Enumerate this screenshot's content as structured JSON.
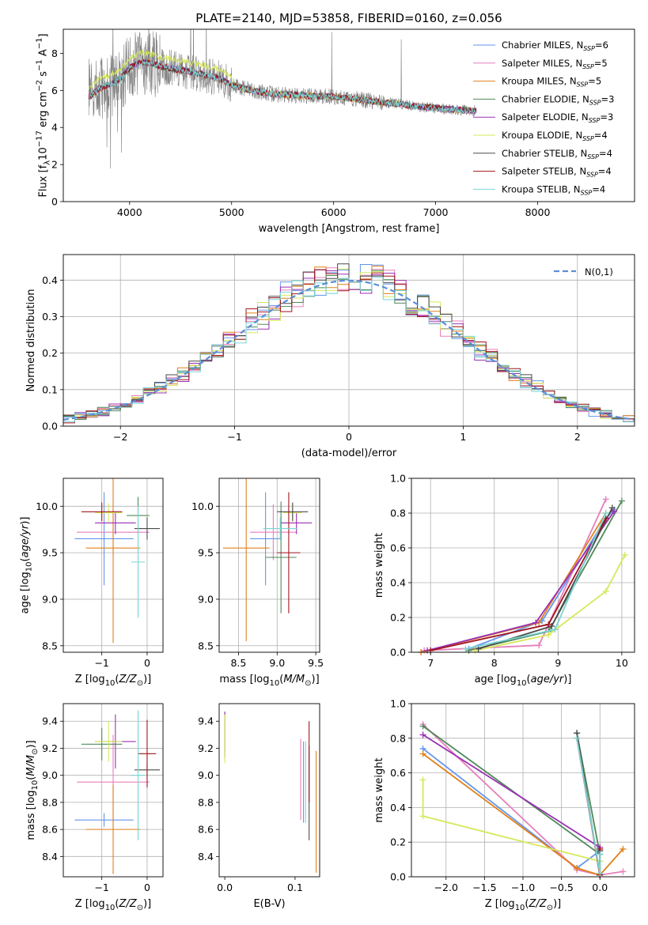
{
  "figure": {
    "title": "PLATE=2140, MJD=53858, FIBERID=0160, z=0.056"
  },
  "series_styles": [
    {
      "name": "Chabrier MILES, N_SSP=6",
      "color": "#6495ed"
    },
    {
      "name": "Salpeter MILES, N_SSP=5",
      "color": "#e67fbc"
    },
    {
      "name": "Kroupa MILES, N_SSP=5",
      "color": "#e0801b"
    },
    {
      "name": "Chabrier ELODIE, N_SSP=3",
      "color": "#4e8a5a"
    },
    {
      "name": "Salpeter ELODIE, N_SSP=3",
      "color": "#9b30b3"
    },
    {
      "name": "Kroupa ELODIE, N_SSP=4",
      "color": "#d6e85a"
    },
    {
      "name": "Chabrier STELIB, N_SSP=4",
      "color": "#4a4a4a"
    },
    {
      "name": "Salpeter STELIB, N_SSP=4",
      "color": "#a0141e"
    },
    {
      "name": "Kroupa STELIB, N_SSP=4",
      "color": "#7ad4d4"
    }
  ],
  "chart_data": [
    {
      "id": "spectrum",
      "type": "line",
      "title": "PLATE=2140, MJD=53858, FIBERID=0160, z=0.056",
      "xlabel": "wavelength [Angstrom, rest frame]",
      "ylabel": "Flux [f_λ 10^-17 erg cm^-2 s^-1 A^-1]",
      "xlim": [
        3350,
        8950
      ],
      "ylim": [
        0,
        9.3
      ],
      "xticks": [
        4000,
        5000,
        6000,
        7000,
        8000
      ],
      "yticks": [
        0,
        2,
        4,
        6,
        8
      ],
      "data_color": "#808080",
      "continuum": {
        "x": [
          3600,
          3700,
          3800,
          3900,
          4000,
          4100,
          4200,
          4300,
          4500,
          4700,
          4900,
          5000,
          5200,
          5400,
          5600,
          5800,
          6000,
          6200,
          6400,
          6600,
          6800,
          7000,
          7200,
          7400
        ],
        "y": [
          5.6,
          6.1,
          6.3,
          6.6,
          7.2,
          7.5,
          7.5,
          7.3,
          7.1,
          6.9,
          6.6,
          6.3,
          6.0,
          5.8,
          5.75,
          5.7,
          5.65,
          5.55,
          5.4,
          5.3,
          5.15,
          5.05,
          4.95,
          4.9
        ]
      },
      "legend": [
        "Chabrier MILES, N_SSP=6",
        "Salpeter MILES, N_SSP=5",
        "Kroupa MILES, N_SSP=5",
        "Chabrier ELODIE, N_SSP=3",
        "Salpeter ELODIE, N_SSP=3",
        "Kroupa ELODIE, N_SSP=4",
        "Chabrier STELIB, N_SSP=4",
        "Salpeter STELIB, N_SSP=4",
        "Kroupa STELIB, N_SSP=4"
      ],
      "legend_placement": "upper right",
      "grid": false
    },
    {
      "id": "residuals",
      "type": "histogram",
      "xlabel": "(data-model)/error",
      "ylabel": "Normed distribution",
      "xlim": [
        -2.5,
        2.5
      ],
      "ylim": [
        0,
        0.47
      ],
      "xticks": [
        -2,
        -1,
        0,
        1,
        2
      ],
      "yticks": [
        0.0,
        0.1,
        0.2,
        0.3,
        0.4
      ],
      "bin_width": 0.1,
      "reference_curve": {
        "name": "N(0,1)",
        "mean": 0,
        "sigma": 1,
        "style": "dashed"
      },
      "legend": [
        "N(0,1)"
      ],
      "legend_placement": "upper right",
      "grid": true
    },
    {
      "id": "age_vs_Z",
      "type": "errorbar",
      "xlabel": "Z [log10(Z/Z⊙)]",
      "ylabel": "age  [log10(age/yr)]",
      "xlim": [
        -1.85,
        0.35
      ],
      "ylim": [
        8.43,
        10.3
      ],
      "xticks": [
        -1,
        0
      ],
      "yticks": [
        8.5,
        9.0,
        9.5,
        10.0
      ],
      "points": [
        {
          "series": 0,
          "x": -0.95,
          "xerr": 0.65,
          "y": 9.65,
          "yerr": 0.5
        },
        {
          "series": 1,
          "x": -0.75,
          "xerr": 0.8,
          "y": 9.72,
          "yerr": 0.25
        },
        {
          "series": 2,
          "x": -0.75,
          "xerr": 0.6,
          "y": 9.55,
          "yerr": 1.02
        },
        {
          "series": 3,
          "x": -0.2,
          "xerr": 0.25,
          "y": 9.9,
          "yerr": 0.2
        },
        {
          "series": 4,
          "x": -0.7,
          "xerr": 0.45,
          "y": 9.82,
          "yerr": 0.12
        },
        {
          "series": 5,
          "x": -0.85,
          "xerr": 0.3,
          "y": 9.93,
          "yerr": 0.1
        },
        {
          "series": 6,
          "x": 0.0,
          "xerr": 0.28,
          "y": 9.76,
          "yerr": 0.12
        },
        {
          "series": 7,
          "x": -1.0,
          "xerr": 0.45,
          "y": 9.94,
          "yerr": 0.1
        },
        {
          "series": 8,
          "x": -0.2,
          "xerr": 0.15,
          "y": 9.4,
          "yerr": 0.6
        }
      ],
      "grid": true
    },
    {
      "id": "age_vs_mass",
      "type": "errorbar",
      "xlabel": "mass [log10(M/M⊙)]",
      "ylabel": "",
      "xlim": [
        8.25,
        9.55
      ],
      "ylim": [
        8.43,
        10.3
      ],
      "xticks": [
        8.5,
        9.0,
        9.5
      ],
      "yticks": [
        8.5,
        9.0,
        9.5,
        10.0
      ],
      "points": [
        {
          "series": 0,
          "x": 8.85,
          "xerr": 0.2,
          "y": 9.65,
          "yerr": 0.5
        },
        {
          "series": 1,
          "x": 8.95,
          "xerr": 0.3,
          "y": 9.72,
          "yerr": 0.3
        },
        {
          "series": 2,
          "x": 8.6,
          "xerr": 0.3,
          "y": 9.55,
          "yerr": 1.0
        },
        {
          "series": 3,
          "x": 9.05,
          "xerr": 0.2,
          "y": 9.45,
          "yerr": 0.6
        },
        {
          "series": 4,
          "x": 9.25,
          "xerr": 0.2,
          "y": 9.82,
          "yerr": 0.12
        },
        {
          "series": 5,
          "x": 9.2,
          "xerr": 0.12,
          "y": 9.93,
          "yerr": 0.1
        },
        {
          "series": 6,
          "x": 9.2,
          "xerr": 0.2,
          "y": 9.94,
          "yerr": 0.1
        },
        {
          "series": 7,
          "x": 9.15,
          "xerr": 0.15,
          "y": 9.5,
          "yerr": 0.65
        },
        {
          "series": 8,
          "x": 9.04,
          "xerr": 0.22,
          "y": 9.76,
          "yerr": 0.12
        }
      ],
      "grid": true
    },
    {
      "id": "weight_vs_age",
      "type": "line",
      "xlabel": "age  [log10(age/yr)]",
      "ylabel": "mass weight",
      "xlim": [
        6.7,
        10.2
      ],
      "ylim": [
        0,
        1.0
      ],
      "xticks": [
        7,
        8,
        9,
        10
      ],
      "yticks": [
        0.0,
        0.2,
        0.4,
        0.6,
        0.8,
        1.0
      ],
      "series": [
        {
          "series": 0,
          "x": [
            7.6,
            8.75,
            9.75,
            9.88
          ],
          "y": [
            0.02,
            0.18,
            0.77,
            0.82
          ]
        },
        {
          "series": 1,
          "x": [
            6.9,
            8.7,
            9.75
          ],
          "y": [
            0.01,
            0.04,
            0.88
          ]
        },
        {
          "series": 2,
          "x": [
            6.85,
            8.7,
            9.75
          ],
          "y": [
            0.0,
            0.17,
            0.8
          ]
        },
        {
          "series": 3,
          "x": [
            7.6,
            8.85,
            10.0
          ],
          "y": [
            0.01,
            0.12,
            0.87
          ]
        },
        {
          "series": 4,
          "x": [
            6.95,
            8.65,
            9.88
          ],
          "y": [
            0.01,
            0.17,
            0.81
          ]
        },
        {
          "series": 5,
          "x": [
            7.7,
            8.85,
            9.75,
            10.05
          ],
          "y": [
            0.01,
            0.1,
            0.35,
            0.56
          ]
        },
        {
          "series": 6,
          "x": [
            7.75,
            8.9,
            9.85
          ],
          "y": [
            0.02,
            0.15,
            0.83
          ]
        },
        {
          "series": 7,
          "x": [
            7.0,
            8.85,
            9.75
          ],
          "y": [
            0.01,
            0.16,
            0.77
          ]
        },
        {
          "series": 8,
          "x": [
            7.55,
            8.95,
            9.75
          ],
          "y": [
            0.02,
            0.13,
            0.8
          ]
        }
      ],
      "grid": true
    },
    {
      "id": "mass_vs_Z",
      "type": "errorbar",
      "xlabel": "Z [log10(Z/Z⊙)]",
      "ylabel": "mass [log10(M/M⊙)]",
      "xlim": [
        -1.85,
        0.35
      ],
      "ylim": [
        8.25,
        9.53
      ],
      "xticks": [
        -1,
        0
      ],
      "yticks": [
        8.4,
        8.6,
        8.8,
        9.0,
        9.2,
        9.4
      ],
      "points": [
        {
          "series": 0,
          "x": -0.95,
          "xerr": 0.65,
          "y": 8.67,
          "yerr": 0.05
        },
        {
          "series": 1,
          "x": -0.75,
          "xerr": 0.8,
          "y": 8.95,
          "yerr": 0.35
        },
        {
          "series": 2,
          "x": -0.75,
          "xerr": 0.6,
          "y": 8.6,
          "yerr": 0.33
        },
        {
          "series": 3,
          "x": -1.0,
          "xerr": 0.45,
          "y": 9.23,
          "yerr": 0.12
        },
        {
          "series": 4,
          "x": -0.7,
          "xerr": 0.45,
          "y": 9.25,
          "yerr": 0.2
        },
        {
          "series": 5,
          "x": -0.85,
          "xerr": 0.3,
          "y": 9.25,
          "yerr": 0.15
        },
        {
          "series": 6,
          "x": 0.0,
          "xerr": 0.28,
          "y": 9.04,
          "yerr": 0.05
        },
        {
          "series": 7,
          "x": 0.0,
          "xerr": 0.2,
          "y": 9.16,
          "yerr": 0.25
        },
        {
          "series": 8,
          "x": -0.2,
          "xerr": 0.15,
          "y": 9.0,
          "yerr": 0.48
        }
      ],
      "grid": true
    },
    {
      "id": "mass_vs_ebv",
      "type": "errorbar",
      "xlabel": "E(B-V)",
      "ylabel": "",
      "xlim": [
        -0.008,
        0.135
      ],
      "ylim": [
        8.25,
        9.53
      ],
      "xticks": [
        0.0,
        0.1
      ],
      "yticks": [
        8.4,
        8.6,
        8.8,
        9.0,
        9.2,
        9.4
      ],
      "points": [
        {
          "series": 0,
          "x": 0.112,
          "yerr": 0.3,
          "y": 8.95
        },
        {
          "series": 1,
          "x": 0.108,
          "yerr": 0.3,
          "y": 8.97
        },
        {
          "series": 2,
          "x": 0.13,
          "yerr": 0.45,
          "y": 8.73
        },
        {
          "series": 3,
          "x": 0.0,
          "yerr": 0.15,
          "y": 9.32
        },
        {
          "series": 4,
          "x": 0.0,
          "yerr": 0.17,
          "y": 9.3
        },
        {
          "series": 5,
          "x": 0.0,
          "yerr": 0.18,
          "y": 9.27
        },
        {
          "series": 6,
          "x": 0.12,
          "yerr": 0.35,
          "y": 8.87
        },
        {
          "series": 7,
          "x": 0.12,
          "yerr": 0.3,
          "y": 9.1
        },
        {
          "series": 8,
          "x": 0.115,
          "yerr": 0.3,
          "y": 8.95
        }
      ],
      "grid": false
    },
    {
      "id": "weight_vs_Z",
      "type": "line",
      "xlabel": "Z [log10(Z/Z⊙)]",
      "ylabel": "mass weight",
      "xlim": [
        -2.45,
        0.45
      ],
      "ylim": [
        0,
        1.0
      ],
      "xticks": [
        -2.0,
        -1.5,
        -1.0,
        -0.5,
        0.0
      ],
      "yticks": [
        0.0,
        0.2,
        0.4,
        0.6,
        0.8,
        1.0
      ],
      "series": [
        {
          "series": 0,
          "x": [
            -2.3,
            -0.3,
            0.0
          ],
          "y": [
            0.74,
            0.05,
            0.15
          ]
        },
        {
          "series": 1,
          "x": [
            -2.3,
            -0.3,
            0.0,
            0.3
          ],
          "y": [
            0.88,
            0.04,
            0.01,
            0.03
          ]
        },
        {
          "series": 2,
          "x": [
            -2.3,
            -0.3,
            0.0,
            0.3
          ],
          "y": [
            0.71,
            0.05,
            0.01,
            0.16
          ]
        },
        {
          "series": 3,
          "x": [
            -2.3,
            0.0,
            -0.3
          ],
          "y": [
            0.87,
            0.13,
            0.83
          ]
        },
        {
          "series": 4,
          "x": [
            -2.3,
            0.0
          ],
          "y": [
            0.82,
            0.17
          ]
        },
        {
          "series": 5,
          "x": [
            -2.3,
            -2.3,
            0.0,
            0.0
          ],
          "y": [
            0.56,
            0.35,
            0.09,
            0.01
          ]
        },
        {
          "series": 6,
          "x": [
            -0.3,
            0.0,
            0.0
          ],
          "y": [
            0.83,
            0.01,
            0.15
          ]
        },
        {
          "series": 7,
          "x": [
            -0.3,
            0.0,
            0.0
          ],
          "y": [
            0.8,
            0.01,
            0.16
          ]
        },
        {
          "series": 8,
          "x": [
            -0.3,
            0.0,
            0.0
          ],
          "y": [
            0.8,
            0.02,
            0.13
          ]
        }
      ],
      "grid": true
    }
  ]
}
